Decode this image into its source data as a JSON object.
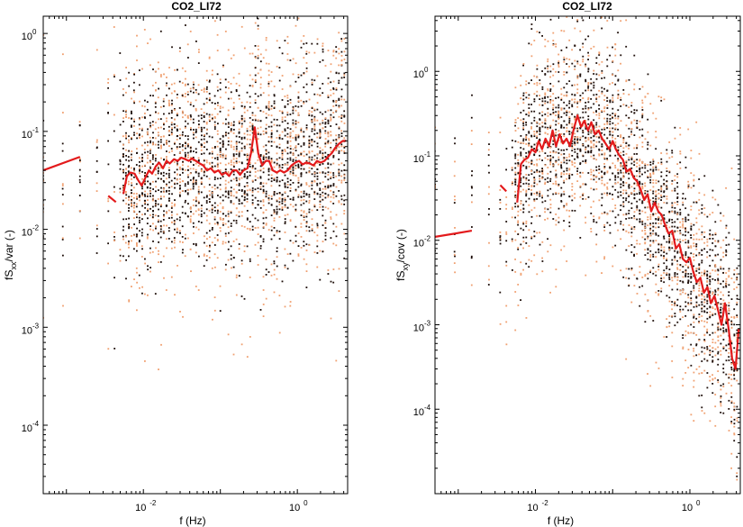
{
  "chart_data": [
    {
      "type": "scatter",
      "title": "CO2_LI72",
      "xlabel": "f (Hz)",
      "ylabel_main": "fS",
      "ylabel_sub": "xx",
      "ylabel_rest": "/var (-)",
      "xscale": "log",
      "yscale": "log",
      "xlim": [
        0.0005,
        4.5
      ],
      "ylim": [
        2e-05,
        1.5
      ],
      "xticks": [
        0.01,
        1
      ],
      "xtick_labels": [
        "10",
        "10"
      ],
      "xtick_exps": [
        "-2",
        "0"
      ],
      "yticks": [
        0.0001,
        0.001,
        0.01,
        0.1,
        1
      ],
      "ytick_labels": [
        "10",
        "10",
        "10",
        "10",
        "10"
      ],
      "ytick_exps": [
        "-4",
        "-3",
        "-2",
        "-1",
        "0"
      ],
      "colors": {
        "dark": "#1a0a05",
        "orange": "#f0a070",
        "median": "#e31a1c"
      },
      "series": [
        {
          "role": "median",
          "x": [
            0.0005,
            0.0015
          ],
          "y": [
            0.04,
            0.055
          ]
        },
        {
          "role": "median",
          "x": [
            0.0035,
            0.0044
          ],
          "y": [
            0.022,
            0.019
          ]
        },
        {
          "role": "median",
          "x": [
            0.0055,
            0.0061,
            0.0068,
            0.0077,
            0.0085,
            0.0095,
            0.0105,
            0.0118,
            0.013,
            0.0145,
            0.016,
            0.018,
            0.02,
            0.022,
            0.025,
            0.028,
            0.031,
            0.035,
            0.039,
            0.043,
            0.048,
            0.054,
            0.06,
            0.067,
            0.075,
            0.084,
            0.094,
            0.105,
            0.117,
            0.13,
            0.145,
            0.162,
            0.18,
            0.2,
            0.225,
            0.25,
            0.28,
            0.31,
            0.35,
            0.39,
            0.43,
            0.48,
            0.54,
            0.6,
            0.67,
            0.75,
            0.84,
            0.94,
            1.05,
            1.17,
            1.3,
            1.45,
            1.62,
            1.8,
            2.0,
            2.25,
            2.5,
            2.8,
            3.1,
            3.5,
            3.9,
            4.3
          ],
          "y": [
            0.023,
            0.035,
            0.038,
            0.037,
            0.032,
            0.028,
            0.033,
            0.04,
            0.037,
            0.044,
            0.048,
            0.042,
            0.05,
            0.047,
            0.052,
            0.05,
            0.054,
            0.052,
            0.05,
            0.053,
            0.05,
            0.047,
            0.045,
            0.04,
            0.042,
            0.038,
            0.04,
            0.036,
            0.038,
            0.035,
            0.04,
            0.04,
            0.036,
            0.04,
            0.042,
            0.06,
            0.11,
            0.06,
            0.045,
            0.05,
            0.05,
            0.04,
            0.038,
            0.04,
            0.038,
            0.04,
            0.045,
            0.048,
            0.05,
            0.046,
            0.048,
            0.047,
            0.045,
            0.05,
            0.048,
            0.05,
            0.055,
            0.06,
            0.068,
            0.075,
            0.08,
            0.08
          ]
        }
      ]
    },
    {
      "type": "scatter",
      "title": "CO2_LI72",
      "xlabel": "f (Hz)",
      "ylabel_main": "fS",
      "ylabel_sub": "xy",
      "ylabel_rest": "/cov (-)",
      "xscale": "log",
      "yscale": "log",
      "xlim": [
        0.0005,
        4.5
      ],
      "ylim": [
        1e-05,
        4.5
      ],
      "xticks": [
        0.01,
        1
      ],
      "xtick_labels": [
        "10",
        "10"
      ],
      "xtick_exps": [
        "-2",
        "0"
      ],
      "yticks": [
        0.0001,
        0.001,
        0.01,
        0.1,
        1
      ],
      "ytick_labels": [
        "10",
        "10",
        "10",
        "10",
        "10"
      ],
      "ytick_exps": [
        "-4",
        "-3",
        "-2",
        "-1",
        "0"
      ],
      "colors": {
        "dark": "#1a0a05",
        "orange": "#f0a070",
        "median": "#e31a1c"
      },
      "series": [
        {
          "role": "median",
          "x": [
            0.0005,
            0.0015
          ],
          "y": [
            0.011,
            0.013
          ]
        },
        {
          "role": "median",
          "x": [
            0.0035,
            0.0042
          ],
          "y": [
            0.045,
            0.038
          ]
        },
        {
          "role": "median",
          "x": [
            0.0058,
            0.0065,
            0.0072,
            0.008,
            0.009,
            0.01,
            0.011,
            0.0122,
            0.0135,
            0.015,
            0.0167,
            0.0185,
            0.0205,
            0.0228,
            0.0253,
            0.028,
            0.031,
            0.035,
            0.039,
            0.043,
            0.048,
            0.053,
            0.059,
            0.066,
            0.073,
            0.081,
            0.09,
            0.1,
            0.11,
            0.123,
            0.136,
            0.151,
            0.168,
            0.187,
            0.207,
            0.23,
            0.256,
            0.284,
            0.316,
            0.35,
            0.39,
            0.43,
            0.48,
            0.53,
            0.59,
            0.66,
            0.73,
            0.81,
            0.9,
            1.0,
            1.11,
            1.23,
            1.37,
            1.52,
            1.69,
            1.87,
            2.08,
            2.31,
            2.57,
            2.85,
            3.17,
            3.52,
            3.9,
            4.3
          ],
          "y": [
            0.028,
            0.08,
            0.09,
            0.095,
            0.12,
            0.11,
            0.15,
            0.12,
            0.16,
            0.13,
            0.2,
            0.13,
            0.18,
            0.14,
            0.16,
            0.13,
            0.2,
            0.3,
            0.22,
            0.26,
            0.2,
            0.25,
            0.18,
            0.2,
            0.16,
            0.14,
            0.12,
            0.15,
            0.12,
            0.1,
            0.09,
            0.065,
            0.07,
            0.055,
            0.05,
            0.04,
            0.03,
            0.035,
            0.022,
            0.028,
            0.022,
            0.02,
            0.015,
            0.012,
            0.013,
            0.008,
            0.009,
            0.006,
            0.0055,
            0.0062,
            0.0042,
            0.0032,
            0.0036,
            0.0024,
            0.0028,
            0.0018,
            0.0022,
            0.0015,
            0.001,
            0.0018,
            0.0009,
            0.0004,
            0.0003,
            0.0009
          ]
        }
      ]
    }
  ]
}
